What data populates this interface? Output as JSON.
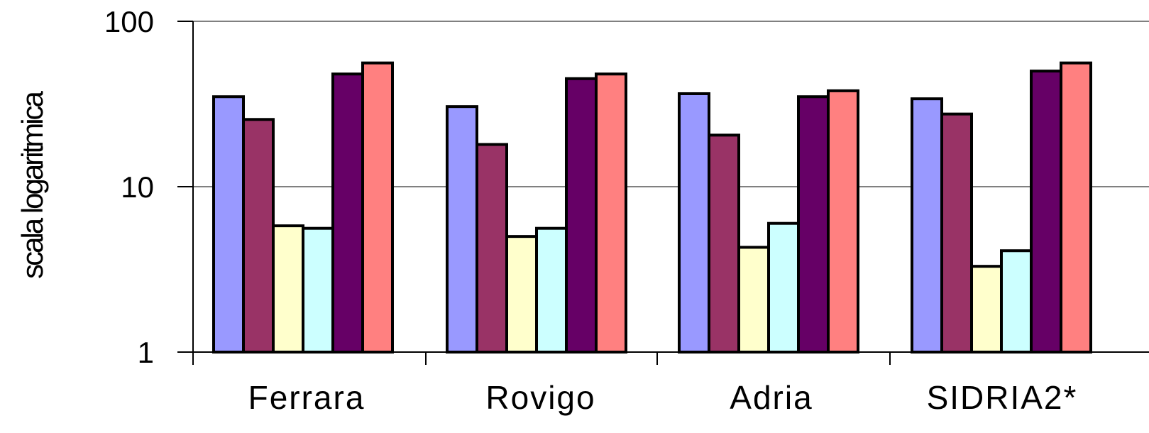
{
  "chart_data": {
    "type": "bar",
    "title": "",
    "ylabel": "scala logaritmica",
    "xlabel": "",
    "y_scale": "log",
    "ylim": [
      1,
      100
    ],
    "y_ticks": [
      "1",
      "10",
      "100"
    ],
    "grid": true,
    "legend": "none",
    "categories": [
      "Ferrara",
      "Rovigo",
      "Adria",
      "SIDRIA2*"
    ],
    "series": [
      {
        "color": "#9999FF",
        "values": [
          35,
          30.5,
          36.5,
          34
        ]
      },
      {
        "color": "#993366",
        "values": [
          25.5,
          18,
          20.5,
          27.5
        ]
      },
      {
        "color": "#FFFFCC",
        "values": [
          5.8,
          5.0,
          4.3,
          3.3
        ]
      },
      {
        "color": "#CCFFFF",
        "values": [
          5.6,
          5.6,
          6.0,
          4.1
        ]
      },
      {
        "color": "#660066",
        "values": [
          48,
          45,
          35,
          50
        ]
      },
      {
        "color": "#FF8080",
        "values": [
          56,
          48,
          38,
          56
        ]
      }
    ]
  }
}
